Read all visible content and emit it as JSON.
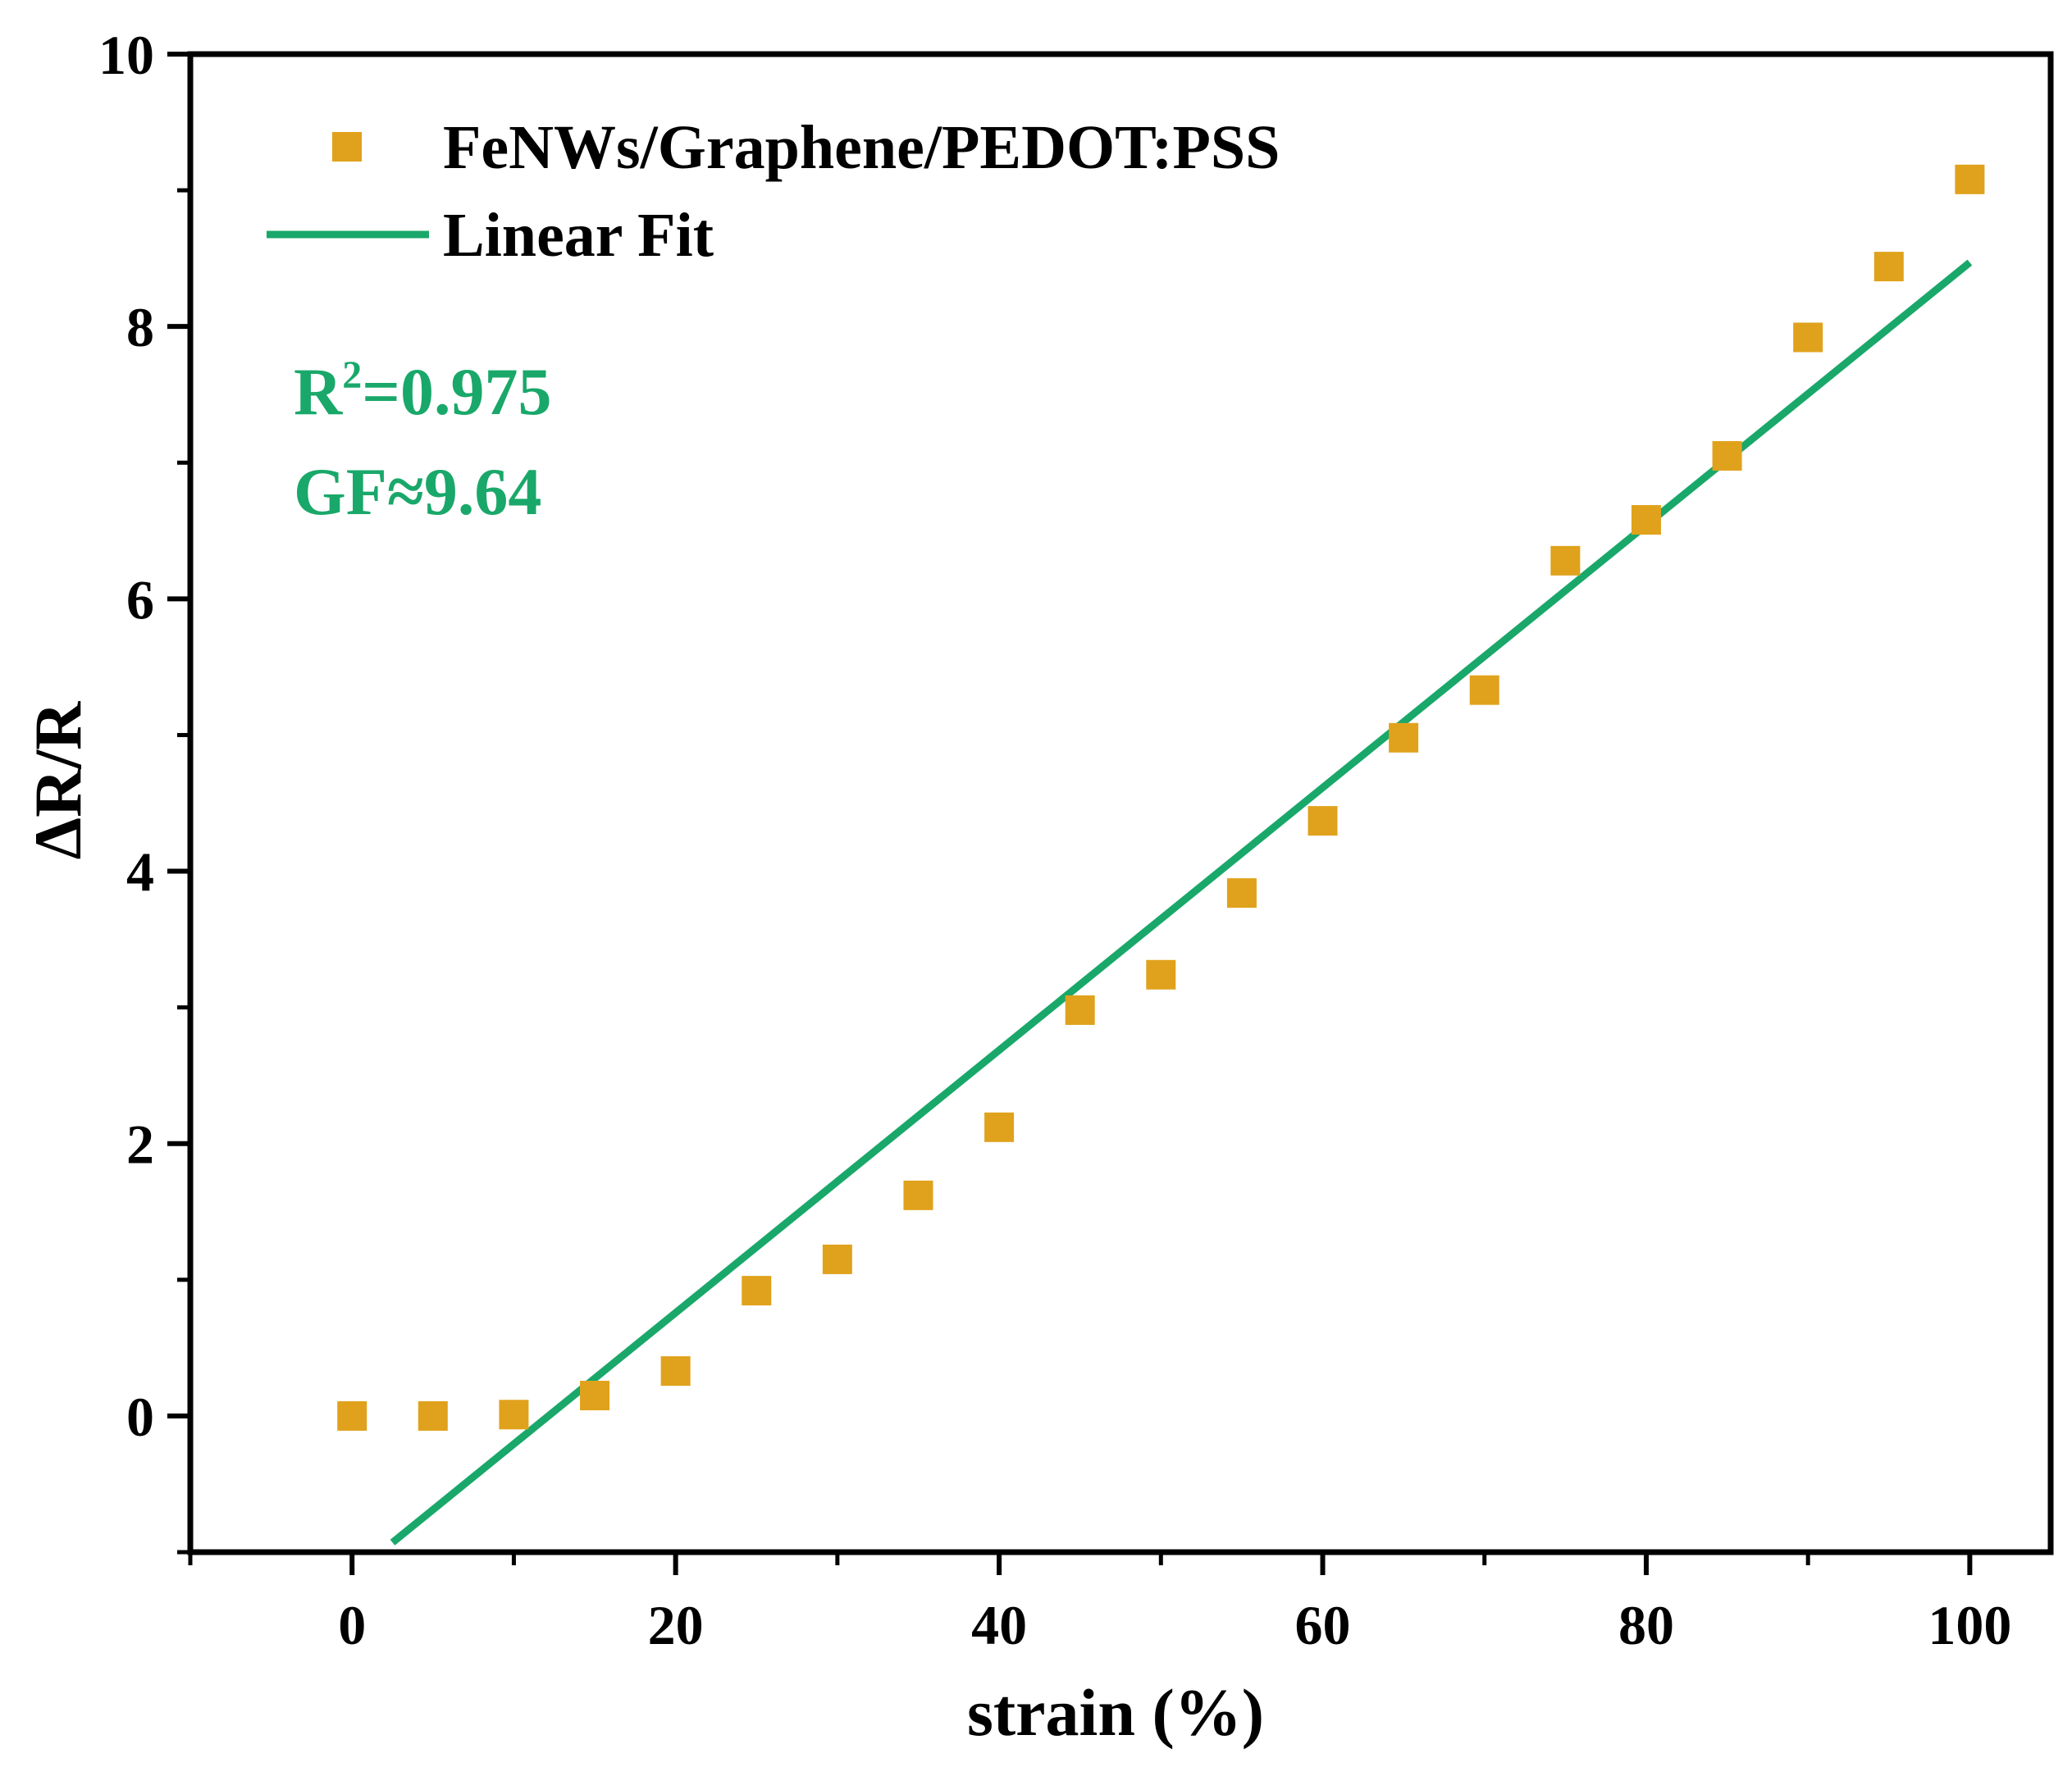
{
  "chart_data": {
    "type": "scatter",
    "title": "",
    "xlabel": "strain (%)",
    "ylabel": "ΔR/R",
    "xlim": [
      -10,
      105
    ],
    "ylim": [
      -1,
      10
    ],
    "xticks": [
      0,
      20,
      40,
      60,
      80,
      100
    ],
    "yticks": [
      0,
      2,
      4,
      6,
      8,
      10
    ],
    "grid": false,
    "legend_position": "top-left",
    "series": [
      {
        "name": "FeNWs/Graphene/PEDOT:PSS",
        "kind": "scatter",
        "marker": "square",
        "color": "#E0A21C",
        "x": [
          0,
          5,
          10,
          15,
          20,
          25,
          30,
          35,
          40,
          45,
          50,
          55,
          60,
          65,
          70,
          75,
          80,
          85,
          90,
          95,
          100
        ],
        "y": [
          0.0,
          0.0,
          0.01,
          0.15,
          0.33,
          0.92,
          1.15,
          1.62,
          2.12,
          2.98,
          3.24,
          3.84,
          4.37,
          4.98,
          5.33,
          6.28,
          6.58,
          7.05,
          7.92,
          8.44,
          9.08
        ]
      },
      {
        "name": "Linear Fit",
        "kind": "line",
        "color": "#19A86A",
        "slope": 0.0964,
        "intercept": -1.17,
        "x_range": [
          2.5,
          100
        ]
      }
    ],
    "annotations": [
      "R2=0.975",
      "GF≈9.64"
    ]
  },
  "annotation": {
    "r2_prefix": "R",
    "r2_superscript": "2",
    "r2_value": "=0.975",
    "gf": "GF≈9.64",
    "color": "#19A86A"
  }
}
